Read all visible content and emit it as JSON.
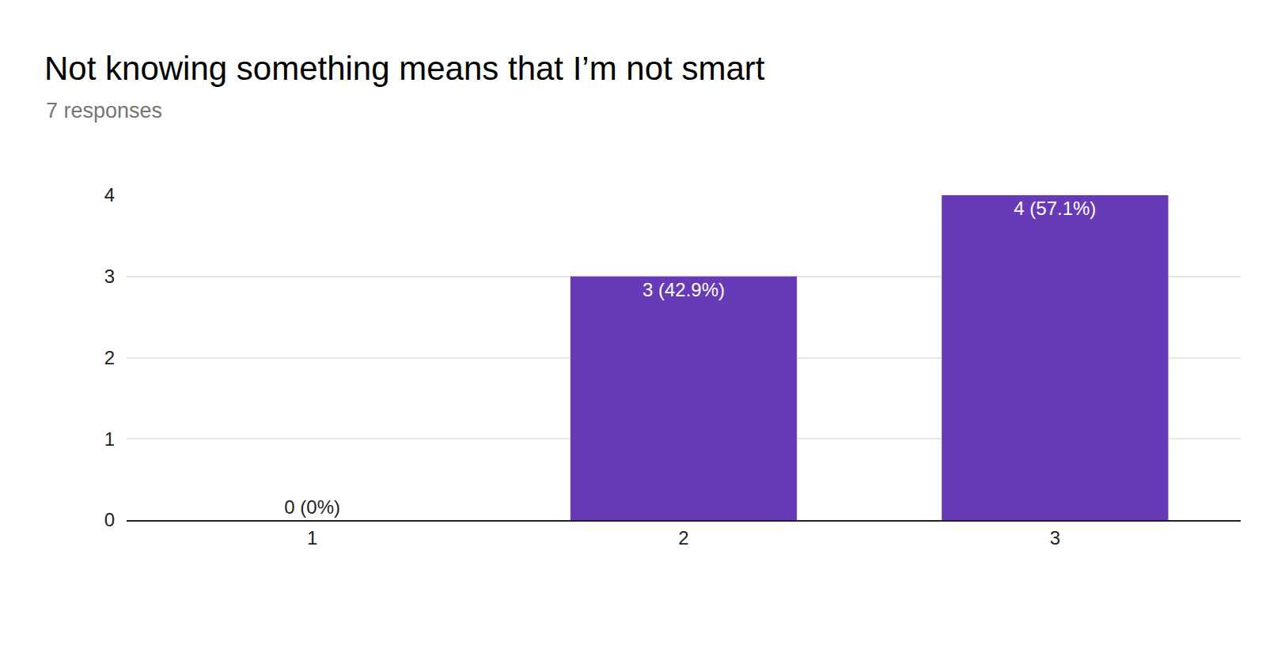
{
  "chart_data": {
    "type": "bar",
    "title": "Not knowing something means that I’m not smart",
    "subtitle": "7 responses",
    "categories": [
      "1",
      "2",
      "3"
    ],
    "values": [
      0,
      3,
      4
    ],
    "value_labels": [
      "0 (0%)",
      "3 (42.9%)",
      "4 (57.1%)"
    ],
    "color": "#673ab7",
    "ylim": [
      0,
      4
    ],
    "yticks": [
      0,
      1,
      2,
      3,
      4
    ],
    "grid": true,
    "data_labels": true
  }
}
